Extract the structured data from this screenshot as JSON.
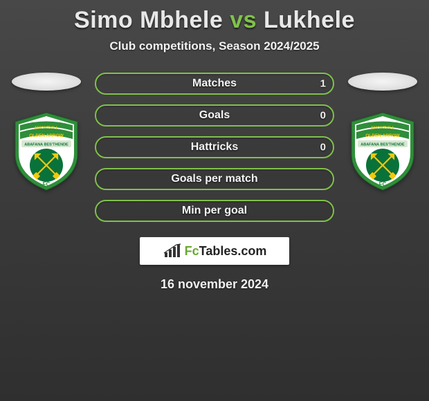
{
  "title": {
    "player1": "Simo Mbhele",
    "vs_word": "vs",
    "player2": "Lukhele",
    "player1_color": "#e8e8e8",
    "vs_color": "#7fc24a",
    "player2_color": "#e8e8e8"
  },
  "subtitle": "Club competitions, Season 2024/2025",
  "date_line": "16 november 2024",
  "background_gradient": [
    "#484848",
    "#383838",
    "#2f2f2f"
  ],
  "crest": {
    "outer_color": "#2f8e3a",
    "inner_color": "#ffffff",
    "circle_color": "#09723a",
    "arrows_color": "#f4c80e",
    "top_text_1": "LAMONTVILLE",
    "top_text_2": "GOLDEN ARROWS",
    "mid_text": "ABAFANA BES'THENDE",
    "fc_text": "FC"
  },
  "stats": {
    "bar_border_color": "#7fc24a",
    "fill_color": "#6aa82f",
    "rows": [
      {
        "label": "Matches",
        "left": "",
        "right": "1",
        "left_pct": 0,
        "right_pct": 100
      },
      {
        "label": "Goals",
        "left": "",
        "right": "0",
        "left_pct": 0,
        "right_pct": 0
      },
      {
        "label": "Hattricks",
        "left": "",
        "right": "0",
        "left_pct": 0,
        "right_pct": 0
      },
      {
        "label": "Goals per match",
        "left": "",
        "right": "",
        "left_pct": 0,
        "right_pct": 0
      },
      {
        "label": "Min per goal",
        "left": "",
        "right": "",
        "left_pct": 0,
        "right_pct": 0
      }
    ]
  },
  "brand": {
    "prefix": "Fc",
    "main": "Tables",
    "suffix": ".com",
    "icon_color": "#333333"
  }
}
